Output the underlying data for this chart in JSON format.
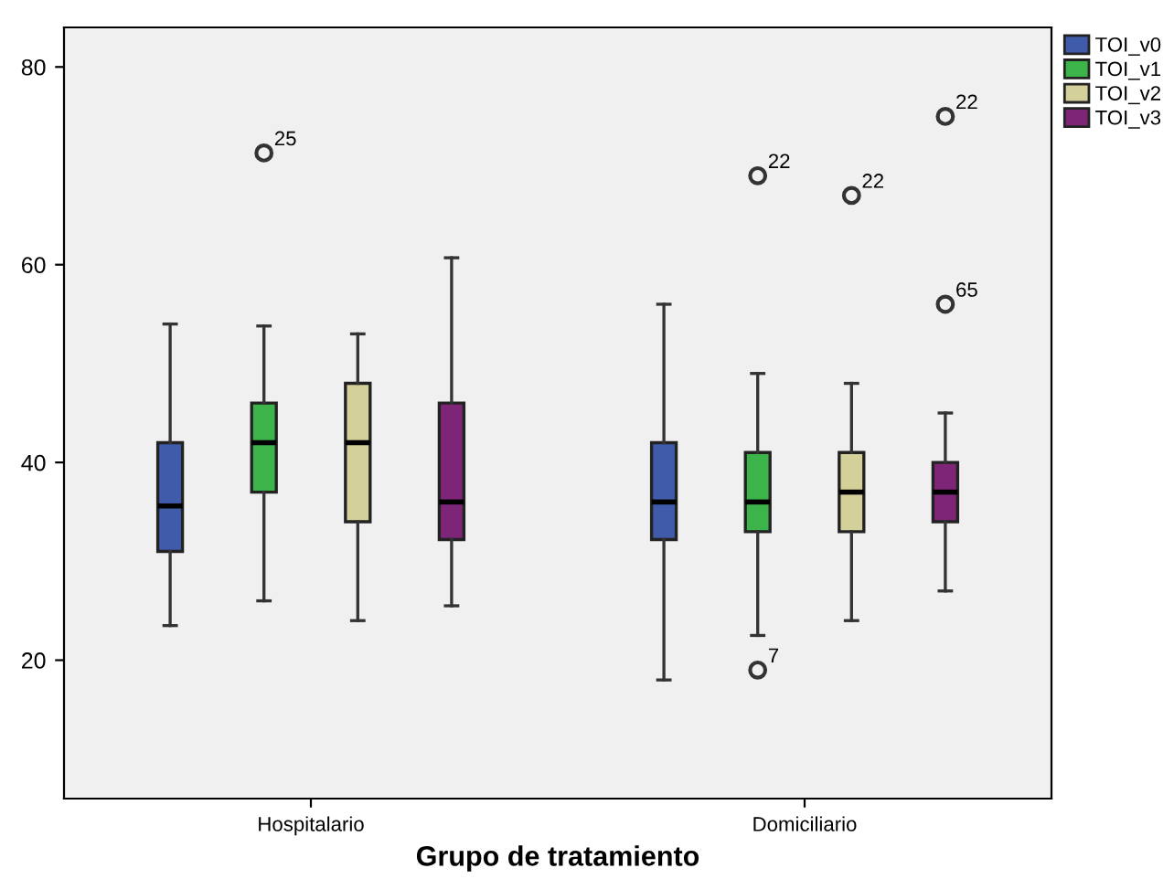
{
  "chart_data": {
    "type": "box",
    "xlabel": "Grupo de tratamiento",
    "categories": [
      "Hospitalario",
      "Domiciliario"
    ],
    "ylim": [
      6,
      84
    ],
    "yticks": [
      20,
      40,
      60,
      80
    ],
    "grid": false,
    "legend": "top right",
    "series": [
      {
        "name": "TOI_v0",
        "color": "#3f5ba9",
        "boxes": [
          {
            "low": 23.5,
            "q1": 31,
            "median": 35.6,
            "q3": 42,
            "high": 54
          },
          {
            "low": 18,
            "q1": 32.2,
            "median": 36,
            "q3": 42,
            "high": 56
          }
        ]
      },
      {
        "name": "TOI_v1",
        "color": "#3cb44a",
        "boxes": [
          {
            "low": 26,
            "q1": 37,
            "median": 42,
            "q3": 46,
            "high": 53.8,
            "outliers": [
              71.3
            ]
          },
          {
            "low": 22.5,
            "q1": 33,
            "median": 36,
            "q3": 41,
            "high": 49,
            "outliers": [
              19,
              69
            ]
          }
        ]
      },
      {
        "name": "TOI_v2",
        "color": "#d4d09a",
        "boxes": [
          {
            "low": 24,
            "q1": 34,
            "median": 42,
            "q3": 48,
            "high": 53
          },
          {
            "low": 24,
            "q1": 33,
            "median": 37,
            "q3": 41,
            "high": 48,
            "outliers": [
              67
            ]
          }
        ]
      },
      {
        "name": "TOI_v3",
        "color": "#7d2677",
        "boxes": [
          {
            "low": 25.5,
            "q1": 32.2,
            "median": 36,
            "q3": 46,
            "high": 60.7
          },
          {
            "low": 27,
            "q1": 34,
            "median": 37,
            "q3": 40,
            "high": 45,
            "outliers": [
              56,
              75
            ]
          }
        ]
      }
    ],
    "annotations": [
      "25",
      "7",
      "22",
      "22",
      "65",
      "22"
    ]
  }
}
